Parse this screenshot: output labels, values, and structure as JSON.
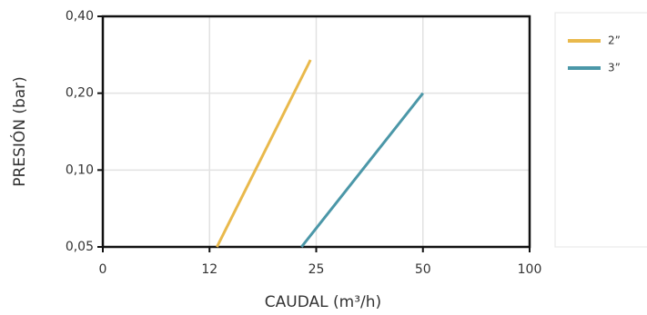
{
  "chart_data": {
    "type": "line",
    "xlabel": "CAUDAL (m³/h)",
    "ylabel": "PRESIÓN (bar)",
    "xlim": [
      0,
      100
    ],
    "xticks": [
      0,
      12,
      25,
      50,
      100
    ],
    "ylim": [
      0.05,
      0.4
    ],
    "ylog": true,
    "yticks": [
      {
        "value": 0.05,
        "label": "0,05"
      },
      {
        "value": 0.1,
        "label": "0,10"
      },
      {
        "value": 0.2,
        "label": "0,20"
      },
      {
        "value": 0.4,
        "label": "0,40"
      }
    ],
    "grid": true,
    "legend": "right",
    "series": [
      {
        "name": "2”",
        "color": "#e9b94c",
        "x": [
          12.9,
          24.3
        ],
        "values": [
          0.05,
          0.27
        ]
      },
      {
        "name": "3”",
        "color": "#4b97a8",
        "x": [
          23.2,
          50
        ],
        "values": [
          0.05,
          0.2
        ]
      }
    ]
  }
}
